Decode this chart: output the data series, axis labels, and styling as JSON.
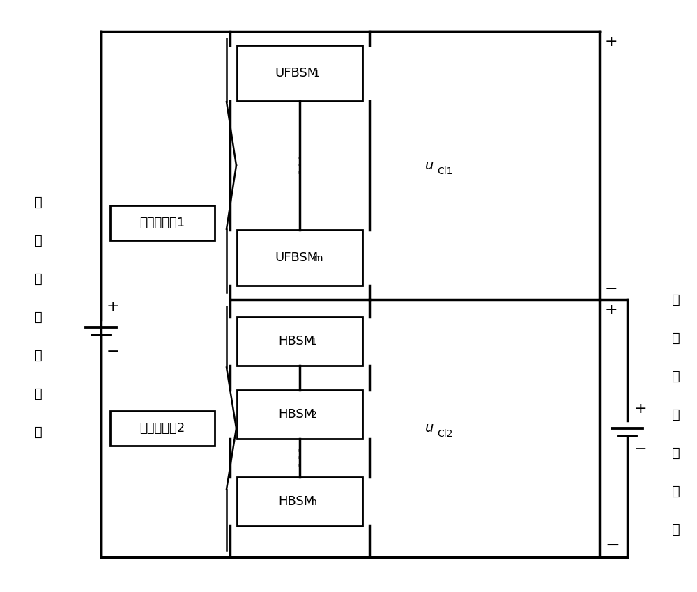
{
  "background": "#ffffff",
  "lc": "#000000",
  "lw": 2.5,
  "blw": 2.0,
  "fs": 13,
  "fs_sub": 10,
  "fs_chi": 13,
  "labels": {
    "chain1": "链式模块串1",
    "chain2": "链式模块串2",
    "hv": "高压侧直流电源",
    "lv": "低压侧直流电源"
  }
}
